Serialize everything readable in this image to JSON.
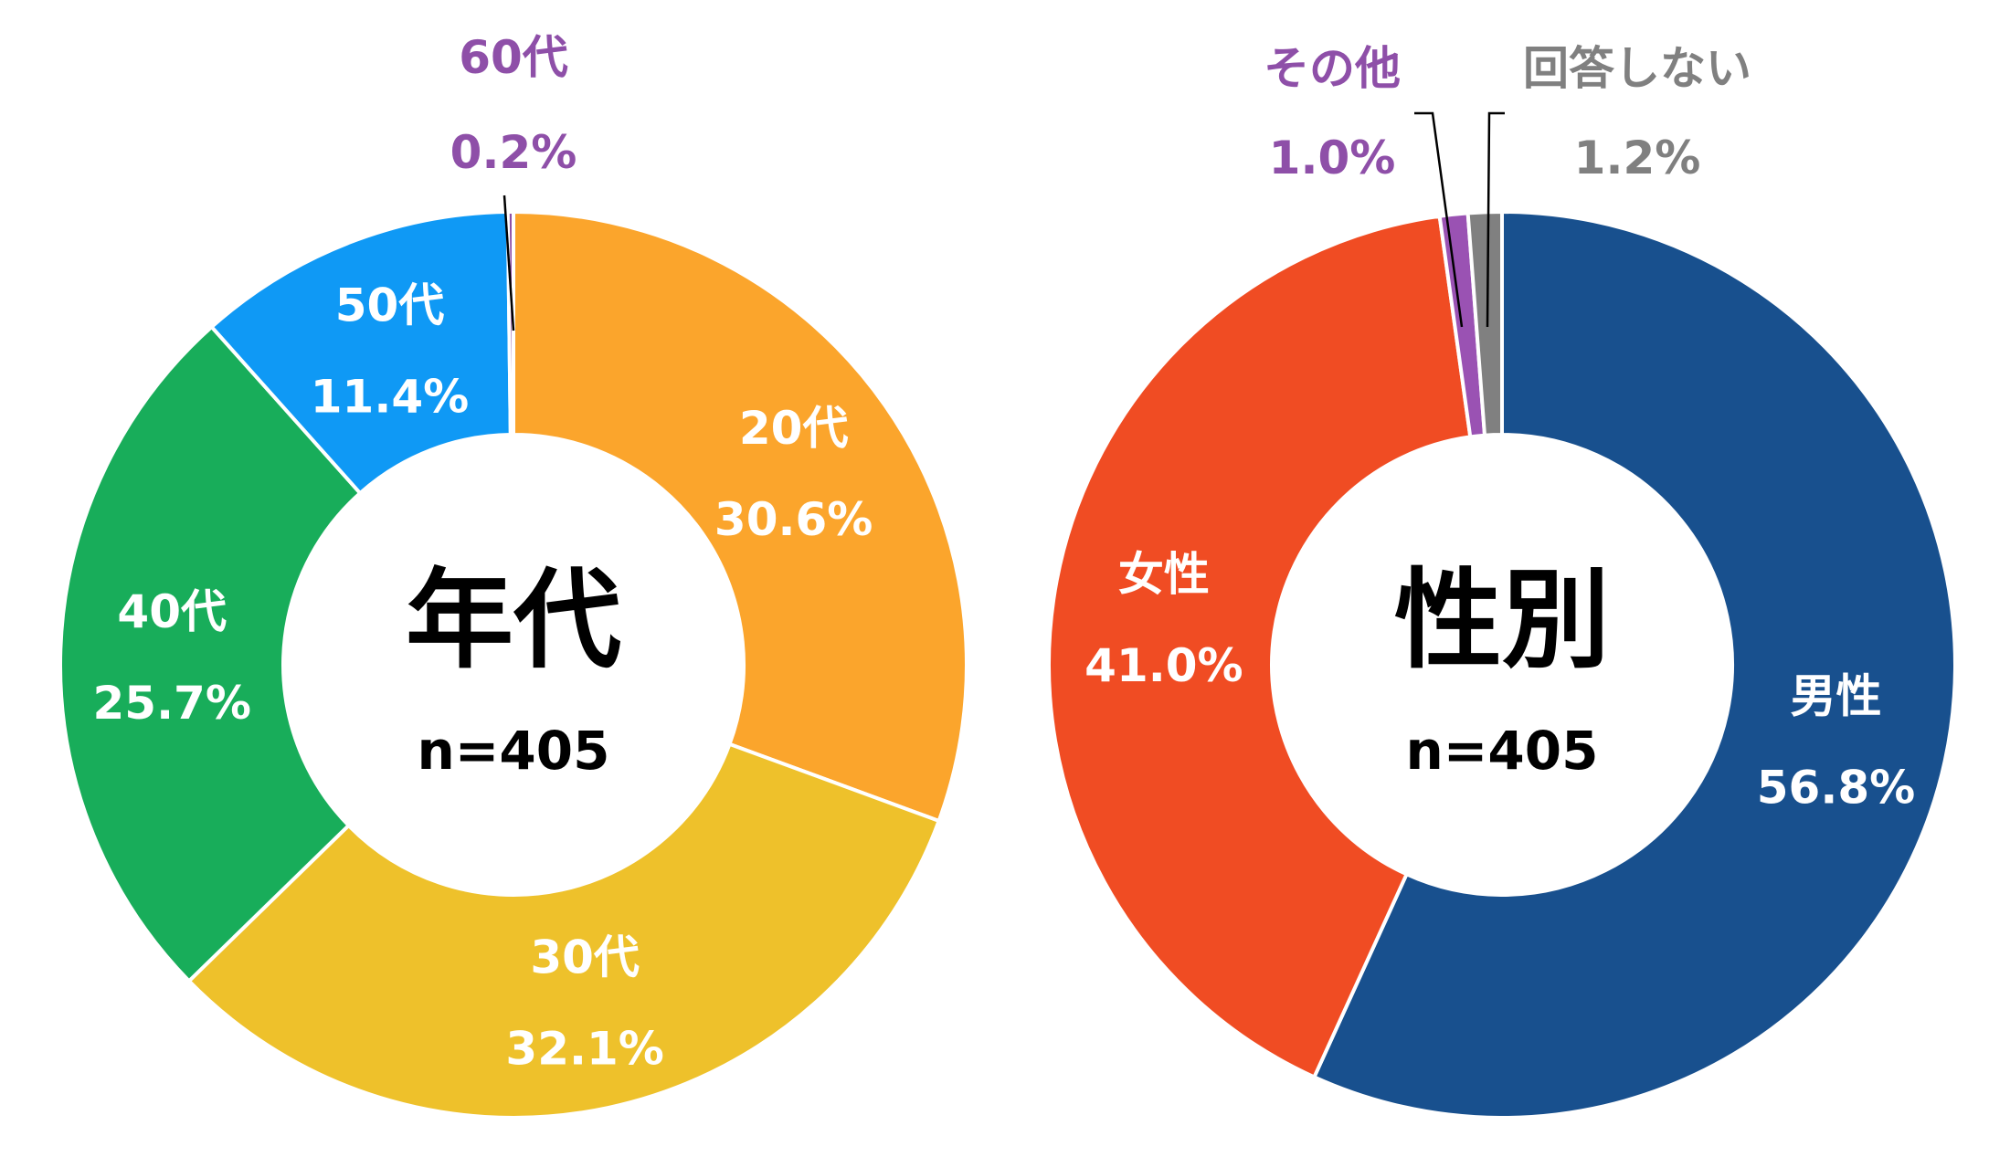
{
  "colors": {
    "age_20s": "#FBA52C",
    "age_30s": "#EEC12B",
    "age_40s": "#18AD5A",
    "age_50s": "#0F99F5",
    "age_60s": "#8E4FA8",
    "male": "#18508E",
    "female": "#F04C23",
    "other": "#9A52B3",
    "no_answer": "#808080",
    "label_light": "#FFFFFF",
    "label_other": "#8E4FA8",
    "label_gray": "#808080",
    "separator": "#FFFFFF"
  },
  "chart_data": [
    {
      "type": "pie",
      "variant": "donut",
      "title": "年代",
      "sample": "n=405",
      "start": "top",
      "direction": "clockwise",
      "slices": [
        {
          "key": "age_20s",
          "name": "20代",
          "value": 30.6,
          "pct_text": "30.6%",
          "color_key": "age_20s",
          "label_color_key": "label_light",
          "label_position": "inside"
        },
        {
          "key": "age_30s",
          "name": "30代",
          "value": 32.1,
          "pct_text": "32.1%",
          "color_key": "age_30s",
          "label_color_key": "label_light",
          "label_position": "inside"
        },
        {
          "key": "age_40s",
          "name": "40代",
          "value": 25.7,
          "pct_text": "25.7%",
          "color_key": "age_40s",
          "label_color_key": "label_light",
          "label_position": "inside"
        },
        {
          "key": "age_50s",
          "name": "50代",
          "value": 11.4,
          "pct_text": "11.4%",
          "color_key": "age_50s",
          "label_color_key": "label_light",
          "label_position": "inside"
        },
        {
          "key": "age_60s",
          "name": "60代",
          "value": 0.2,
          "pct_text": "0.2%",
          "color_key": "age_60s",
          "label_color_key": "label_other",
          "label_position": "outside-top"
        }
      ]
    },
    {
      "type": "pie",
      "variant": "donut",
      "title": "性別",
      "sample": "n=405",
      "start": "top",
      "direction": "clockwise",
      "slices": [
        {
          "key": "male",
          "name": "男性",
          "value": 56.8,
          "pct_text": "56.8%",
          "color_key": "male",
          "label_color_key": "label_light",
          "label_position": "inside"
        },
        {
          "key": "female",
          "name": "女性",
          "value": 41.0,
          "pct_text": "41.0%",
          "color_key": "female",
          "label_color_key": "label_light",
          "label_position": "inside"
        },
        {
          "key": "other",
          "name": "その他",
          "value": 1.0,
          "pct_text": "1.0%",
          "color_key": "other",
          "label_color_key": "label_other",
          "label_position": "outside-top-left"
        },
        {
          "key": "no_answer",
          "name": "回答しない",
          "value": 1.2,
          "pct_text": "1.2%",
          "color_key": "no_answer",
          "label_color_key": "label_gray",
          "label_position": "outside-top-right"
        }
      ]
    }
  ]
}
